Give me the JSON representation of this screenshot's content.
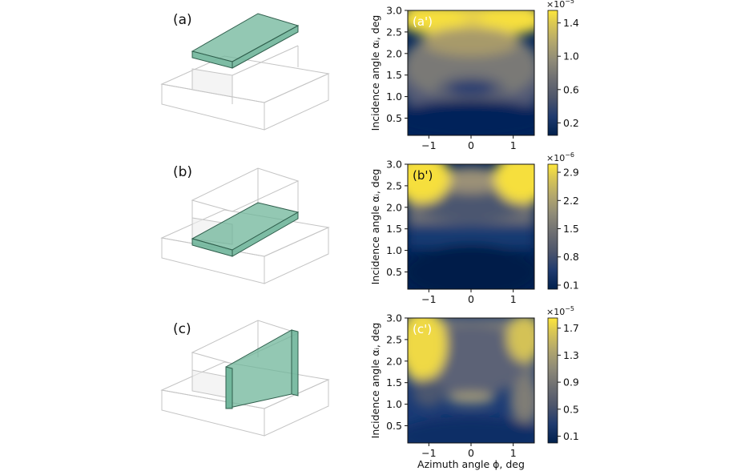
{
  "figure": {
    "geometry_labels": [
      "(a)",
      "(b)",
      "(c)"
    ],
    "slab_color": "#6fb59a",
    "x_axis_label": "Azimuth angle ϕ, deg",
    "y_axis_label": "Incidence angle αᵢ, deg",
    "colormap": "cividis"
  },
  "chart_data": [
    {
      "type": "heatmap",
      "panel_label": "(a')",
      "panel_label_color": "#ffffff",
      "x_ticks": [
        "−1",
        "0",
        "1"
      ],
      "x_tick_values": [
        -1,
        0,
        1
      ],
      "xlim": [
        -1.5,
        1.5
      ],
      "y_ticks": [
        "0.5",
        "1.0",
        "1.5",
        "2.0",
        "2.5",
        "3.0"
      ],
      "y_tick_values": [
        0.5,
        1.0,
        1.5,
        2.0,
        2.5,
        3.0
      ],
      "ylim": [
        0.1,
        3.0
      ],
      "colorbar": {
        "multiplier": "×10",
        "exponent": "−5",
        "ticks": [
          "0.2",
          "0.6",
          "1.0",
          "1.4"
        ],
        "tick_values": [
          0.2,
          0.6,
          1.0,
          1.4
        ],
        "range": [
          0.05,
          1.55
        ]
      },
      "show_x_label": false
    },
    {
      "type": "heatmap",
      "panel_label": "(b')",
      "panel_label_color": "#111111",
      "x_ticks": [
        "−1",
        "0",
        "1"
      ],
      "x_tick_values": [
        -1,
        0,
        1
      ],
      "xlim": [
        -1.5,
        1.5
      ],
      "y_ticks": [
        "0.5",
        "1.0",
        "1.5",
        "2.0",
        "2.5",
        "3.0"
      ],
      "y_tick_values": [
        0.5,
        1.0,
        1.5,
        2.0,
        2.5,
        3.0
      ],
      "ylim": [
        0.1,
        3.0
      ],
      "colorbar": {
        "multiplier": "×10",
        "exponent": "−6",
        "ticks": [
          "0.1",
          "0.8",
          "1.5",
          "2.2",
          "2.9"
        ],
        "tick_values": [
          0.1,
          0.8,
          1.5,
          2.2,
          2.9
        ],
        "range": [
          0.0,
          3.1
        ]
      },
      "show_x_label": false
    },
    {
      "type": "heatmap",
      "panel_label": "(c')",
      "panel_label_color": "#ffffff",
      "x_ticks": [
        "−1",
        "0",
        "1"
      ],
      "x_tick_values": [
        -1,
        0,
        1
      ],
      "xlim": [
        -1.5,
        1.5
      ],
      "y_ticks": [
        "0.5",
        "1.0",
        "1.5",
        "2.0",
        "2.5",
        "3.0"
      ],
      "y_tick_values": [
        0.5,
        1.0,
        1.5,
        2.0,
        2.5,
        3.0
      ],
      "ylim": [
        0.1,
        3.0
      ],
      "colorbar": {
        "multiplier": "×10",
        "exponent": "−5",
        "ticks": [
          "0.1",
          "0.5",
          "0.9",
          "1.3",
          "1.7"
        ],
        "tick_values": [
          0.1,
          0.5,
          0.9,
          1.3,
          1.7
        ],
        "range": [
          0.0,
          1.85
        ]
      },
      "show_x_label": true
    }
  ]
}
